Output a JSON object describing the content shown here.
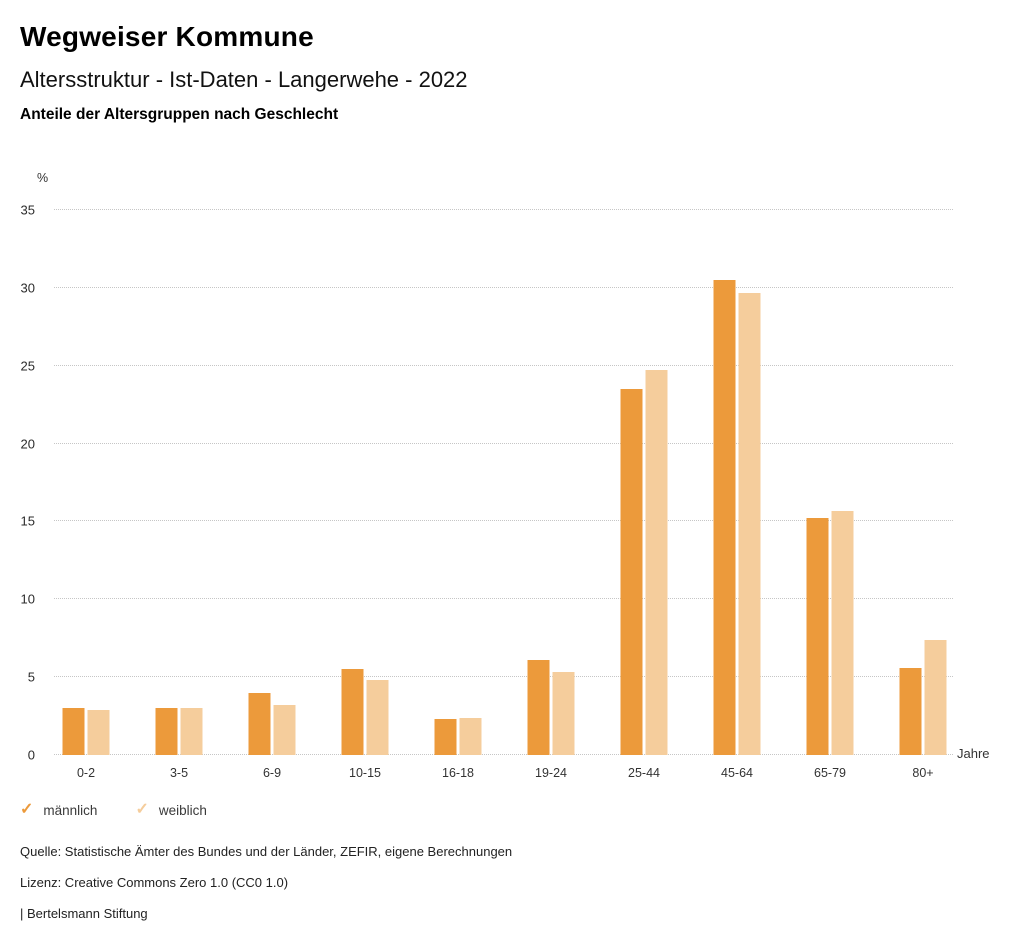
{
  "header": {
    "title": "Wegweiser Kommune",
    "subtitle": "Altersstruktur - Ist-Daten - Langerwehe - 2022",
    "subheading": "Anteile der Altersgruppen nach Geschlecht"
  },
  "chart_data": {
    "type": "bar",
    "title": "Anteile der Altersgruppen nach Geschlecht",
    "categories": [
      "0-2",
      "3-5",
      "6-9",
      "10-15",
      "16-18",
      "19-24",
      "25-44",
      "45-64",
      "65-79",
      "80+"
    ],
    "series": [
      {
        "name": "männlich",
        "color": "#EC9A3B",
        "values": [
          3.0,
          3.0,
          4.0,
          5.5,
          2.3,
          6.1,
          23.5,
          30.5,
          15.2,
          5.6
        ]
      },
      {
        "name": "weiblich",
        "color": "#F5CD9C",
        "values": [
          2.9,
          3.0,
          3.2,
          4.8,
          2.4,
          5.3,
          24.7,
          29.7,
          15.7,
          7.4
        ]
      }
    ],
    "xlabel": "Jahre",
    "ylabel": "%",
    "ylim": [
      0,
      35
    ],
    "yticks": [
      0,
      5,
      10,
      15,
      20,
      25,
      30,
      35
    ],
    "grid": "dotted horizontal gridlines",
    "legend_position": "bottom-left",
    "gridline_color": "#c6c6c6"
  },
  "legend": {
    "check_icon": "✓",
    "items": [
      {
        "label": "männlich",
        "color": "#EC9A3B"
      },
      {
        "label": "weiblich",
        "color": "#F5CD9C"
      }
    ]
  },
  "footer": {
    "source": "Quelle: Statistische Ämter des Bundes und der Länder, ZEFIR, eigene Berechnungen",
    "license": "Lizenz: Creative Commons Zero 1.0 (CC0 1.0)",
    "attribution": "| Bertelsmann Stiftung"
  }
}
